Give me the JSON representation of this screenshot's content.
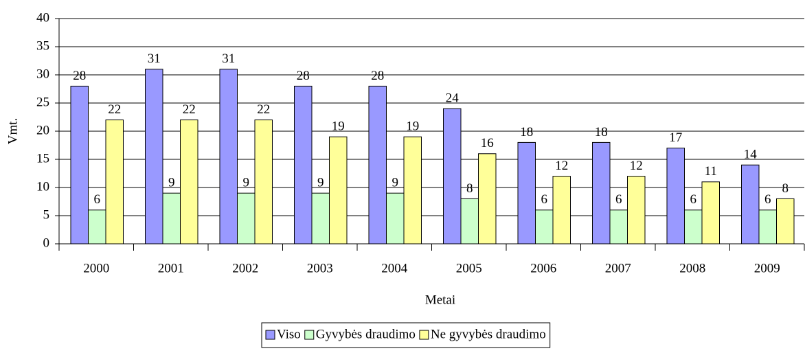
{
  "chart_data": {
    "type": "bar",
    "categories": [
      "2000",
      "2001",
      "2002",
      "2003",
      "2004",
      "2005",
      "2006",
      "2007",
      "2008",
      "2009"
    ],
    "series": [
      {
        "name": "Viso",
        "color": "#9999ff",
        "values": [
          28,
          31,
          31,
          28,
          28,
          24,
          18,
          18,
          17,
          14
        ]
      },
      {
        "name": "Gyvybės draudimo",
        "color": "#ccffcc",
        "values": [
          6,
          9,
          9,
          9,
          9,
          8,
          6,
          6,
          6,
          6
        ]
      },
      {
        "name": "Ne gyvybės draudimo",
        "color": "#ffff99",
        "values": [
          22,
          22,
          22,
          19,
          19,
          16,
          12,
          12,
          11,
          8
        ]
      }
    ],
    "xlabel": "Metai",
    "ylabel": "Vmt.",
    "ylim": [
      0,
      40
    ],
    "yticks": [
      0,
      5,
      10,
      15,
      20,
      25,
      30,
      35,
      40
    ],
    "grid": true,
    "legend": "bottom"
  }
}
